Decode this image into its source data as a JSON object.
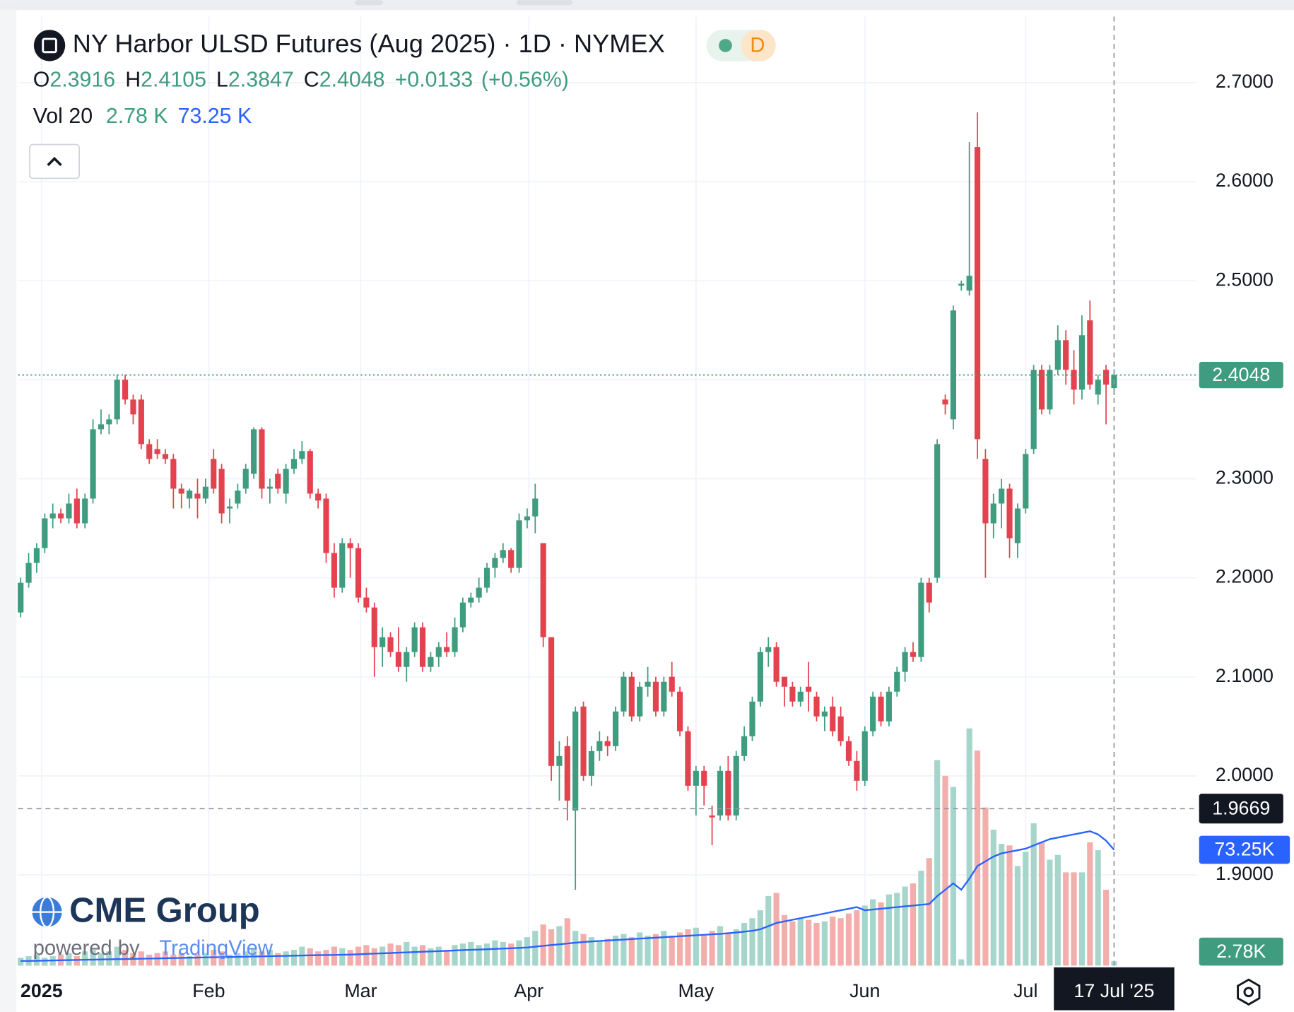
{
  "chart_data": {
    "type": "candlestick",
    "title": "NY Harbor ULSD Futures (Aug 2025) · 1D · NYMEX",
    "badge": "D",
    "ohlc_legend": {
      "labels": [
        "O",
        "H",
        "L",
        "C"
      ],
      "values": [
        2.3916,
        2.4105,
        2.3847,
        2.4048
      ]
    },
    "change": {
      "value": 0.0133,
      "label": "+0.0133"
    },
    "change_percent": {
      "value": 0.56,
      "label": "(+0.56%)"
    },
    "volume_legend": {
      "name": "Vol 20",
      "values": [
        2780,
        73250
      ],
      "value_labels": [
        "2.78 K",
        "73.25 K"
      ]
    },
    "up_color": "#3f9c7f",
    "down_color": "#e3434f",
    "volume_up_color": "#a6d6cb",
    "volume_down_color": "#f3aeac",
    "categories": [
      null,
      null,
      null,
      null,
      null,
      null,
      null,
      null,
      null,
      null,
      null,
      null,
      null,
      null,
      null,
      null,
      null,
      null,
      null,
      null,
      null,
      null,
      null,
      null,
      null,
      null,
      null,
      null,
      null,
      null,
      null,
      null,
      null,
      null,
      null,
      null,
      null,
      null,
      null,
      null,
      null,
      null,
      null,
      null,
      null,
      null,
      null,
      null,
      null,
      null,
      null,
      null,
      null,
      null,
      null,
      null,
      null,
      null,
      null,
      null,
      null,
      null,
      null,
      null,
      null,
      null,
      null,
      null,
      null,
      null,
      null,
      null,
      null,
      null,
      null,
      null,
      null,
      null,
      null,
      null,
      null,
      null,
      null,
      null,
      null,
      null,
      null,
      null,
      null,
      null,
      null,
      null,
      null,
      null,
      null,
      null,
      null,
      null,
      null,
      null,
      null,
      null,
      null,
      null,
      null,
      null,
      null,
      null,
      null,
      null,
      null,
      null,
      null,
      null,
      null,
      null,
      null,
      null,
      null,
      null,
      null,
      null,
      null,
      null,
      null,
      null,
      null,
      null,
      null,
      null,
      null,
      null,
      null,
      null,
      null,
      null,
      null
    ],
    "open": [
      2.165,
      2.195,
      2.215,
      2.23,
      2.26,
      2.265,
      2.26,
      2.28,
      2.255,
      2.28,
      2.35,
      2.355,
      2.36,
      2.4,
      2.38,
      2.38,
      2.335,
      2.33,
      2.325,
      2.32,
      2.29,
      2.28,
      2.285,
      2.28,
      2.32,
      2.31,
      2.27,
      2.275,
      2.29,
      2.305,
      2.35,
      2.29,
      2.305,
      2.285,
      2.31,
      2.32,
      2.328,
      2.285,
      2.28,
      2.225,
      2.19,
      2.235,
      2.23,
      2.18,
      2.17,
      2.13,
      2.14,
      2.125,
      2.11,
      2.125,
      2.15,
      2.11,
      2.12,
      2.13,
      2.125,
      2.15,
      2.175,
      2.18,
      2.19,
      2.21,
      2.22,
      2.228,
      2.21,
      2.258,
      2.262,
      2.235,
      2.14,
      2.01,
      2.03,
      1.965,
      2.07,
      2.0,
      2.025,
      2.035,
      2.03,
      2.065,
      2.1,
      2.06,
      2.09,
      2.095,
      2.065,
      2.1,
      2.085,
      2.045,
      1.99,
      2.005,
      1.96,
      1.96,
      2.005,
      1.96,
      2.02,
      2.04,
      2.075,
      2.125,
      2.13,
      2.1,
      2.09,
      2.075,
      2.09,
      2.08,
      2.06,
      2.07,
      2.06,
      2.035,
      2.015,
      1.995,
      2.045,
      2.08,
      2.055,
      2.085,
      2.105,
      2.125,
      2.12,
      2.195,
      2.2,
      2.38,
      2.36,
      2.495,
      2.49,
      2.635,
      2.32,
      2.255,
      2.275,
      2.29,
      2.235,
      2.27,
      2.33,
      2.41,
      2.37,
      2.41,
      2.44,
      2.41,
      2.39,
      2.46,
      2.385,
      2.41,
      2.3916
    ],
    "high": [
      2.2,
      2.225,
      2.235,
      2.265,
      2.275,
      2.27,
      2.285,
      2.29,
      2.285,
      2.36,
      2.37,
      2.365,
      2.405,
      2.405,
      2.385,
      2.385,
      2.34,
      2.34,
      2.33,
      2.325,
      2.295,
      2.29,
      2.3,
      2.3,
      2.33,
      2.315,
      2.28,
      2.295,
      2.315,
      2.352,
      2.352,
      2.3,
      2.31,
      2.315,
      2.33,
      2.338,
      2.33,
      2.29,
      2.285,
      2.235,
      2.24,
      2.24,
      2.235,
      2.19,
      2.175,
      2.15,
      2.145,
      2.15,
      2.13,
      2.155,
      2.155,
      2.125,
      2.135,
      2.145,
      2.16,
      2.18,
      2.185,
      2.2,
      2.215,
      2.225,
      2.235,
      2.23,
      2.265,
      2.27,
      2.295,
      2.235,
      2.14,
      2.035,
      2.04,
      2.07,
      2.075,
      2.03,
      2.045,
      2.04,
      2.07,
      2.105,
      2.105,
      2.095,
      2.11,
      2.1,
      2.1,
      2.115,
      2.09,
      2.05,
      2.01,
      2.01,
      1.97,
      2.01,
      2.02,
      2.025,
      2.05,
      2.08,
      2.13,
      2.14,
      2.135,
      2.1,
      2.095,
      2.09,
      2.115,
      2.085,
      2.07,
      2.08,
      2.07,
      2.04,
      2.025,
      2.05,
      2.085,
      2.085,
      2.09,
      2.11,
      2.13,
      2.135,
      2.2,
      2.2,
      2.34,
      2.385,
      2.475,
      2.5,
      2.64,
      2.67,
      2.33,
      2.285,
      2.3,
      2.295,
      2.275,
      2.33,
      2.415,
      2.415,
      2.415,
      2.455,
      2.45,
      2.43,
      2.465,
      2.48,
      2.405,
      2.415,
      2.4105
    ],
    "low": [
      2.16,
      2.19,
      2.205,
      2.225,
      2.25,
      2.255,
      2.255,
      2.25,
      2.25,
      2.275,
      2.345,
      2.345,
      2.355,
      2.375,
      2.355,
      2.33,
      2.315,
      2.32,
      2.315,
      2.27,
      2.27,
      2.27,
      2.26,
      2.275,
      2.285,
      2.255,
      2.255,
      2.27,
      2.285,
      2.3,
      2.28,
      2.275,
      2.285,
      2.275,
      2.305,
      2.315,
      2.28,
      2.27,
      2.215,
      2.18,
      2.185,
      2.2,
      2.175,
      2.165,
      2.1,
      2.11,
      2.12,
      2.105,
      2.095,
      2.12,
      2.105,
      2.105,
      2.11,
      2.12,
      2.12,
      2.145,
      2.17,
      2.175,
      2.185,
      2.2,
      2.215,
      2.205,
      2.205,
      2.25,
      2.245,
      2.13,
      1.995,
      1.975,
      1.955,
      1.885,
      1.995,
      1.99,
      2.015,
      2.02,
      2.025,
      2.06,
      2.055,
      2.055,
      2.08,
      2.06,
      2.06,
      2.08,
      2.04,
      1.985,
      1.96,
      1.97,
      1.93,
      1.955,
      1.955,
      1.955,
      2.015,
      2.035,
      2.07,
      2.11,
      2.09,
      2.07,
      2.07,
      2.07,
      2.065,
      2.055,
      2.045,
      2.04,
      2.03,
      2.01,
      1.985,
      1.99,
      2.04,
      2.05,
      2.05,
      2.08,
      2.095,
      2.115,
      2.115,
      2.165,
      2.195,
      2.365,
      2.35,
      2.49,
      2.485,
      2.32,
      2.2,
      2.24,
      2.25,
      2.22,
      2.22,
      2.265,
      2.325,
      2.365,
      2.365,
      2.405,
      2.395,
      2.375,
      2.38,
      2.39,
      2.375,
      2.355,
      2.3847
    ],
    "close": [
      2.195,
      2.215,
      2.23,
      2.26,
      2.265,
      2.26,
      2.275,
      2.255,
      2.28,
      2.35,
      2.355,
      2.36,
      2.4,
      2.38,
      2.365,
      2.335,
      2.32,
      2.325,
      2.32,
      2.29,
      2.285,
      2.288,
      2.28,
      2.292,
      2.29,
      2.265,
      2.272,
      2.288,
      2.31,
      2.35,
      2.29,
      2.292,
      2.29,
      2.31,
      2.32,
      2.328,
      2.285,
      2.278,
      2.225,
      2.19,
      2.235,
      2.23,
      2.18,
      2.17,
      2.13,
      2.14,
      2.125,
      2.11,
      2.125,
      2.15,
      2.11,
      2.12,
      2.13,
      2.125,
      2.15,
      2.175,
      2.18,
      2.19,
      2.21,
      2.22,
      2.228,
      2.21,
      2.258,
      2.262,
      2.28,
      2.14,
      2.01,
      2.02,
      1.975,
      2.065,
      2.0,
      2.025,
      2.035,
      2.03,
      2.065,
      2.1,
      2.06,
      2.09,
      2.095,
      2.065,
      2.095,
      2.085,
      2.045,
      1.99,
      2.005,
      1.99,
      1.958,
      2.005,
      1.96,
      2.02,
      2.04,
      2.075,
      2.125,
      2.13,
      2.095,
      2.09,
      2.075,
      2.085,
      2.085,
      2.06,
      2.065,
      2.045,
      2.035,
      2.015,
      1.995,
      2.045,
      2.08,
      2.055,
      2.085,
      2.105,
      2.125,
      2.12,
      2.195,
      2.175,
      2.335,
      2.375,
      2.47,
      2.497,
      2.505,
      2.34,
      2.255,
      2.275,
      2.29,
      2.24,
      2.27,
      2.325,
      2.41,
      2.37,
      2.41,
      2.44,
      2.41,
      2.39,
      2.445,
      2.395,
      2.4,
      2.395,
      2.4048
    ],
    "volume": {
      "values": [
        5000,
        6000,
        7000,
        5000,
        6000,
        7000,
        8000,
        6000,
        9000,
        10000,
        8000,
        9000,
        12000,
        10000,
        8000,
        9000,
        7000,
        8000,
        9000,
        7000,
        8000,
        6000,
        7000,
        8000,
        10000,
        9000,
        7000,
        8000,
        9000,
        11000,
        9000,
        10000,
        8000,
        9000,
        10000,
        12000,
        11000,
        9000,
        10000,
        12000,
        11000,
        10000,
        12000,
        13000,
        11000,
        12000,
        14000,
        13000,
        15000,
        12000,
        13000,
        11000,
        12000,
        10000,
        13000,
        14000,
        15000,
        13000,
        14000,
        16000,
        15000,
        14000,
        16000,
        18000,
        22000,
        26000,
        23000,
        25000,
        30000,
        22000,
        20000,
        18000,
        16000,
        17000,
        19000,
        20000,
        18000,
        21000,
        19000,
        20000,
        22000,
        19000,
        21000,
        23000,
        24000,
        20000,
        22000,
        25000,
        21000,
        23000,
        27000,
        30000,
        35000,
        44000,
        46000,
        32000,
        28000,
        30000,
        29000,
        27000,
        28000,
        31000,
        30000,
        33000,
        35000,
        38000,
        42000,
        40000,
        45000,
        46000,
        50000,
        52000,
        60000,
        68000,
        130000,
        120000,
        113000,
        4000,
        150000,
        136000,
        100000,
        86000,
        77000,
        76000,
        63000,
        72000,
        90000,
        78000,
        67000,
        70000,
        59000,
        59000,
        59000,
        78000,
        73000,
        48000,
        2780
      ],
      "last_label": "2.78K",
      "ylim": [
        0,
        600000
      ],
      "ma": {
        "color": "#2962ff",
        "last_label": "73.25K",
        "values": [
          3000,
          3000,
          3100,
          3200,
          3300,
          3400,
          3500,
          3600,
          3700,
          3800,
          3900,
          4000,
          4100,
          4200,
          4300,
          4400,
          4500,
          4600,
          4700,
          4800,
          4900,
          5000,
          5100,
          5200,
          5300,
          5400,
          5500,
          5600,
          5700,
          5800,
          5900,
          6000,
          6100,
          6200,
          6300,
          6400,
          6500,
          6600,
          6700,
          6800,
          6900,
          7000,
          7200,
          7400,
          7600,
          7800,
          8000,
          8200,
          8400,
          8600,
          8800,
          9000,
          9200,
          9400,
          9600,
          9800,
          10000,
          10200,
          10400,
          10600,
          10800,
          11000,
          11200,
          11500,
          12000,
          12500,
          13000,
          13500,
          14000,
          14500,
          15000,
          15300,
          15600,
          15900,
          16200,
          16500,
          16800,
          17100,
          17400,
          17700,
          18000,
          18300,
          18600,
          18900,
          19200,
          19500,
          19800,
          20100,
          20500,
          21000,
          21500,
          22000,
          23000,
          25000,
          27000,
          28000,
          29000,
          30000,
          31000,
          32000,
          33000,
          34000,
          35000,
          36000,
          37000,
          35000,
          35500,
          36000,
          36500,
          37000,
          37500,
          38000,
          38500,
          39000,
          44000,
          48000,
          52000,
          48000,
          55000,
          63000,
          66000,
          69000,
          71000,
          72000,
          73000,
          74000,
          76000,
          78000,
          80000,
          81000,
          82000,
          83000,
          84000,
          85000,
          83000,
          79000,
          73250
        ]
      }
    },
    "ylim": [
      1.8083,
      2.7667
    ],
    "yticks": [
      {
        "value": 1.9,
        "label": "1.9000"
      },
      {
        "value": 2.0,
        "label": "2.0000"
      },
      {
        "value": 2.1,
        "label": "2.1000"
      },
      {
        "value": 2.2,
        "label": "2.2000"
      },
      {
        "value": 2.3,
        "label": "2.3000"
      },
      {
        "value": 2.4,
        "label": "2.4000"
      },
      {
        "value": 2.5,
        "label": "2.5000"
      },
      {
        "value": 2.6,
        "label": "2.6000"
      },
      {
        "value": 2.7,
        "label": "2.7000"
      }
    ],
    "xticks": [
      {
        "value": 2.6,
        "label": "2025"
      },
      {
        "value": 23.4,
        "label": "Feb"
      },
      {
        "value": 42.3,
        "label": "Mar"
      },
      {
        "value": 63.2,
        "label": "Apr"
      },
      {
        "value": 84,
        "label": "May"
      },
      {
        "value": 105,
        "label": "Jun"
      },
      {
        "value": 125,
        "label": "Jul"
      }
    ],
    "last_price": {
      "value": 2.4048,
      "label": "2.4048"
    },
    "crosshair": {
      "price": {
        "value": 1.9669,
        "label": "1.9669"
      },
      "date": "17 Jul '25"
    },
    "grid": true,
    "watermark": {
      "brand": "CME Group",
      "powered_by": "powered by",
      "platform": "TradingView"
    }
  }
}
